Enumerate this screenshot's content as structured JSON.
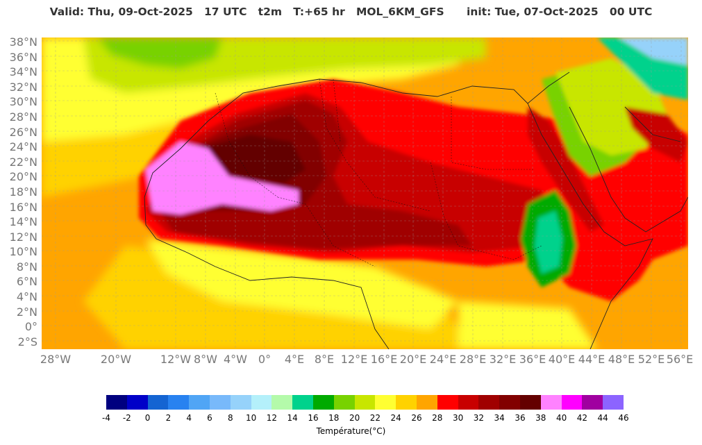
{
  "header": {
    "title": "Valid: Thu, 09-Oct-2025   17 UTC   t2m   T:+65 hr   MOL_6KM_GFS      init: Tue, 07-Oct-2025   00 UTC"
  },
  "map": {
    "lat_labels": [
      "38°N",
      "36°N",
      "34°N",
      "32°N",
      "30°N",
      "28°N",
      "26°N",
      "24°N",
      "22°N",
      "20°N",
      "18°N",
      "16°N",
      "14°N",
      "12°N",
      "10°N",
      "8°N",
      "6°N",
      "4°N",
      "2°N",
      "0°",
      "2°S"
    ],
    "lon_labels": [
      "28°W",
      "20°W",
      "12°W",
      "8°W",
      "4°W",
      "0°",
      "4°E",
      "8°E",
      "12°E",
      "16°E",
      "20°E",
      "24°E",
      "28°E",
      "32°E",
      "36°E",
      "40°E",
      "44°E",
      "48°E",
      "52°E",
      "56°E"
    ]
  },
  "colorbar": {
    "label": "Température(°C)",
    "ticks": [
      "-4",
      "-2",
      "0",
      "2",
      "4",
      "6",
      "8",
      "10",
      "12",
      "14",
      "16",
      "18",
      "20",
      "22",
      "24",
      "26",
      "28",
      "30",
      "32",
      "34",
      "36",
      "38",
      "40",
      "42",
      "44",
      "46"
    ],
    "colors": [
      "#00007f",
      "#0000c8",
      "#1464d2",
      "#2882f0",
      "#50a5f5",
      "#78b9fa",
      "#96d2fa",
      "#b4f0fa",
      "#b4faaa",
      "#00d28c",
      "#00aa00",
      "#78d200",
      "#c8e600",
      "#ffff32",
      "#ffd200",
      "#ffa500",
      "#ff0000",
      "#c80000",
      "#a00000",
      "#820000",
      "#640000",
      "#ff82ff",
      "#ff00ff",
      "#a000a0",
      "#8c64ff"
    ]
  }
}
